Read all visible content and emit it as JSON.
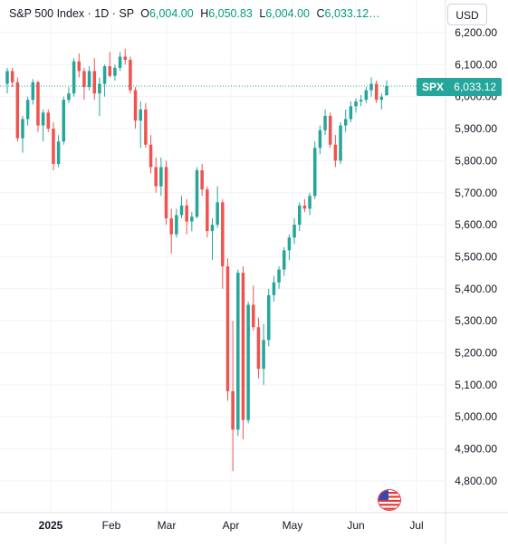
{
  "legend": {
    "title": "S&P 500 Index · 1D · SP",
    "open_label": "O",
    "open_value": "6,004.00",
    "high_label": "H",
    "high_value": "6,050.83",
    "low_label": "L",
    "low_value": "6,004.00",
    "close_label": "C",
    "close_value": "6,033.12…"
  },
  "currency_button": "USD",
  "price_tag": {
    "symbol": "SPX",
    "value": "6,033.12"
  },
  "colors": {
    "up": "#26a69a",
    "down": "#ef5350",
    "grid": "#f0f3fa",
    "axis_text": "#131722",
    "tag": "#26a69a"
  },
  "icons": {
    "country_flag": "us-flag-icon"
  },
  "chart_data": {
    "type": "candlestick",
    "ylim": [
      4750,
      6220
    ],
    "y_ticks": [
      "6,200.00",
      "6,100.00",
      "6,000.00",
      "5,900.00",
      "5,800.00",
      "5,700.00",
      "5,600.00",
      "5,500.00",
      "5,400.00",
      "5,300.00",
      "5,200.00",
      "5,100.00",
      "5,000.00",
      "4,900.00",
      "4,800.00"
    ],
    "x_ticks": [
      "2025",
      "Feb",
      "Mar",
      "Apr",
      "May",
      "Jun",
      "Jul"
    ],
    "last_price": 6033.12,
    "candles": [
      [
        6040,
        6090,
        6010,
        6080
      ],
      [
        6080,
        6090,
        6030,
        6045
      ],
      [
        6045,
        6060,
        5860,
        5870
      ],
      [
        5870,
        5940,
        5825,
        5930
      ],
      [
        5930,
        6000,
        5910,
        5990
      ],
      [
        5990,
        6055,
        5975,
        6045
      ],
      [
        6045,
        6050,
        5890,
        5910
      ],
      [
        5910,
        5960,
        5860,
        5950
      ],
      [
        5950,
        5960,
        5890,
        5900
      ],
      [
        5900,
        5920,
        5770,
        5790
      ],
      [
        5790,
        5880,
        5780,
        5860
      ],
      [
        5860,
        6000,
        5850,
        5990
      ],
      [
        5990,
        6030,
        5980,
        6010
      ],
      [
        6010,
        6120,
        6000,
        6110
      ],
      [
        6110,
        6135,
        6060,
        6080
      ],
      [
        6080,
        6090,
        5990,
        6030
      ],
      [
        6030,
        6095,
        6020,
        6080
      ],
      [
        6080,
        6120,
        5990,
        6010
      ],
      [
        6010,
        6060,
        5940,
        6040
      ],
      [
        6040,
        6100,
        6000,
        6095
      ],
      [
        6095,
        6140,
        6060,
        6065
      ],
      [
        6065,
        6100,
        6050,
        6090
      ],
      [
        6090,
        6140,
        6080,
        6125
      ],
      [
        6125,
        6150,
        6100,
        6115
      ],
      [
        6115,
        6125,
        6010,
        6020
      ],
      [
        6020,
        6030,
        5900,
        5925
      ],
      [
        5925,
        5985,
        5840,
        5960
      ],
      [
        5960,
        5980,
        5840,
        5850
      ],
      [
        5850,
        5880,
        5760,
        5780
      ],
      [
        5780,
        5810,
        5700,
        5720
      ],
      [
        5720,
        5810,
        5690,
        5780
      ],
      [
        5780,
        5800,
        5600,
        5620
      ],
      [
        5620,
        5650,
        5510,
        5570
      ],
      [
        5570,
        5650,
        5560,
        5630
      ],
      [
        5630,
        5690,
        5620,
        5660
      ],
      [
        5660,
        5680,
        5570,
        5610
      ],
      [
        5610,
        5640,
        5580,
        5625
      ],
      [
        5625,
        5780,
        5620,
        5770
      ],
      [
        5770,
        5790,
        5690,
        5710
      ],
      [
        5710,
        5720,
        5560,
        5580
      ],
      [
        5580,
        5620,
        5490,
        5600
      ],
      [
        5600,
        5720,
        5590,
        5670
      ],
      [
        5670,
        5680,
        5400,
        5470
      ],
      [
        5470,
        5495,
        5050,
        5080
      ],
      [
        5080,
        5300,
        4830,
        4960
      ],
      [
        4960,
        5460,
        4940,
        5450
      ],
      [
        5450,
        5470,
        4930,
        4990
      ],
      [
        4990,
        5360,
        4980,
        5350
      ],
      [
        5350,
        5410,
        5270,
        5280
      ],
      [
        5280,
        5310,
        5120,
        5150
      ],
      [
        5150,
        5290,
        5100,
        5240
      ],
      [
        5240,
        5400,
        5220,
        5380
      ],
      [
        5380,
        5440,
        5360,
        5420
      ],
      [
        5420,
        5470,
        5400,
        5460
      ],
      [
        5460,
        5530,
        5440,
        5520
      ],
      [
        5520,
        5570,
        5490,
        5560
      ],
      [
        5560,
        5620,
        5540,
        5600
      ],
      [
        5600,
        5670,
        5580,
        5660
      ],
      [
        5660,
        5680,
        5640,
        5650
      ],
      [
        5650,
        5700,
        5630,
        5690
      ],
      [
        5690,
        5860,
        5680,
        5840
      ],
      [
        5840,
        5910,
        5820,
        5895
      ],
      [
        5895,
        5960,
        5880,
        5940
      ],
      [
        5940,
        5950,
        5840,
        5850
      ],
      [
        5850,
        5880,
        5780,
        5800
      ],
      [
        5800,
        5920,
        5790,
        5910
      ],
      [
        5910,
        5960,
        5890,
        5930
      ],
      [
        5930,
        5985,
        5920,
        5970
      ],
      [
        5970,
        5995,
        5950,
        5985
      ],
      [
        5985,
        6005,
        5970,
        5990
      ],
      [
        5990,
        6030,
        5980,
        6020
      ],
      [
        6020,
        6060,
        6000,
        6040
      ],
      [
        6040,
        6050,
        5980,
        5990
      ],
      [
        5990,
        6010,
        5960,
        6000
      ],
      [
        6004,
        6051,
        6004,
        6033
      ]
    ],
    "grid": true
  }
}
